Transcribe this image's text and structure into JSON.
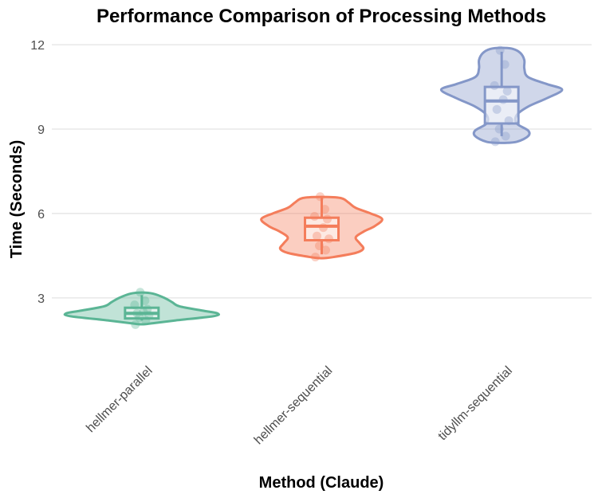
{
  "chart_data": {
    "type": "violin",
    "title": "Performance Comparison of Processing Methods",
    "xlabel": "Method (Claude)",
    "ylabel": "Time (Seconds)",
    "ylim": [
      0.9,
      12.4
    ],
    "yticks": [
      3,
      6,
      9,
      12
    ],
    "grid": true,
    "legend": "none",
    "categories": [
      "hellmer-parallel",
      "hellmer-sequential",
      "tidyllm-sequential"
    ],
    "colors": [
      "#5bb595",
      "#f47d5b",
      "#8497c8"
    ],
    "series": [
      {
        "category": "hellmer-parallel",
        "box": {
          "min": 2.2,
          "q1": 2.27,
          "median": 2.45,
          "q3": 2.65,
          "max": 3.1
        },
        "violin": [
          [
            2.1,
            0.15
          ],
          [
            2.2,
            0.45
          ],
          [
            2.35,
            0.95
          ],
          [
            2.45,
            1.0
          ],
          [
            2.55,
            0.8
          ],
          [
            2.7,
            0.5
          ],
          [
            2.85,
            0.4
          ],
          [
            3.0,
            0.3
          ],
          [
            3.15,
            0.15
          ]
        ],
        "points": [
          2.05,
          2.2,
          2.3,
          2.38,
          2.45,
          2.5,
          2.6,
          2.75,
          2.9,
          3.2
        ]
      },
      {
        "category": "hellmer-sequential",
        "box": {
          "min": 4.55,
          "q1": 5.05,
          "median": 5.55,
          "q3": 5.85,
          "max": 6.55
        },
        "violin": [
          [
            4.45,
            0.15
          ],
          [
            4.6,
            0.45
          ],
          [
            4.75,
            0.55
          ],
          [
            4.95,
            0.5
          ],
          [
            5.15,
            0.45
          ],
          [
            5.35,
            0.55
          ],
          [
            5.55,
            0.7
          ],
          [
            5.8,
            0.8
          ],
          [
            6.0,
            0.65
          ],
          [
            6.2,
            0.45
          ],
          [
            6.4,
            0.35
          ],
          [
            6.55,
            0.25
          ]
        ],
        "points": [
          4.45,
          4.7,
          4.85,
          5.1,
          5.2,
          5.5,
          5.8,
          5.9,
          6.15,
          6.6
        ]
      },
      {
        "category": "tidyllm-sequential",
        "box": {
          "min": 8.75,
          "q1": 9.2,
          "median": 10.0,
          "q3": 10.5,
          "max": 11.75
        },
        "violin": [
          [
            8.55,
            0.2
          ],
          [
            8.75,
            0.35
          ],
          [
            8.95,
            0.35
          ],
          [
            9.2,
            0.2
          ],
          [
            9.5,
            0.2
          ],
          [
            9.8,
            0.35
          ],
          [
            10.1,
            0.6
          ],
          [
            10.4,
            0.8
          ],
          [
            10.6,
            0.6
          ],
          [
            10.85,
            0.35
          ],
          [
            11.15,
            0.3
          ],
          [
            11.45,
            0.3
          ],
          [
            11.7,
            0.25
          ],
          [
            11.85,
            0.15
          ]
        ],
        "points": [
          8.55,
          8.75,
          9.0,
          9.3,
          9.7,
          10.05,
          10.35,
          10.55,
          11.3,
          11.8
        ]
      }
    ]
  }
}
